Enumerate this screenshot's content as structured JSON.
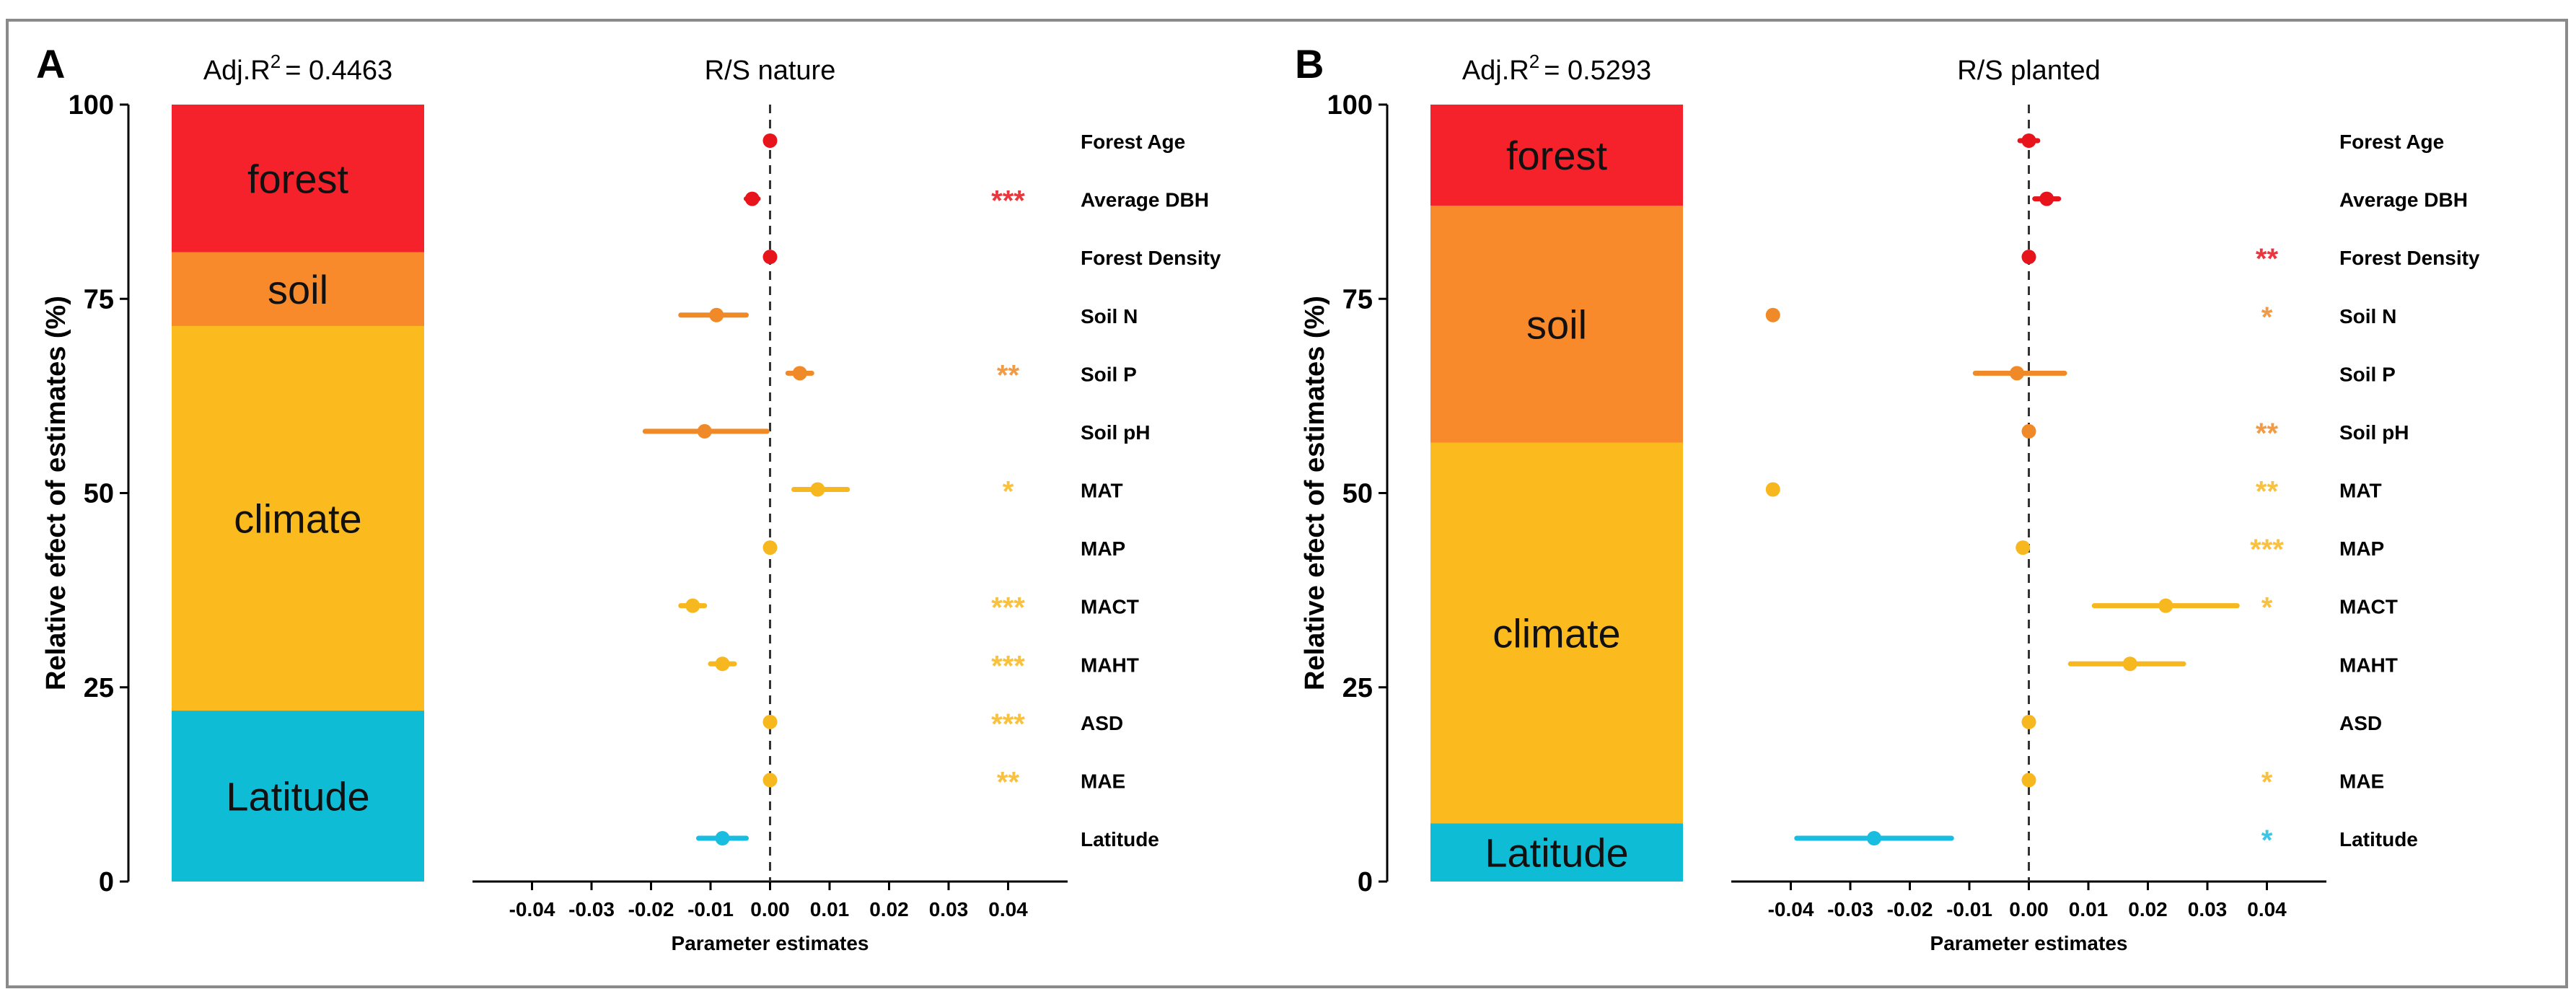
{
  "chart_data": [
    {
      "type": "stacked-bar-and-forest-plot",
      "panel_label": "A",
      "adj_r2_prefix": "Adj.R",
      "adj_r2_exponent": "2",
      "adj_r2_value": "= 0.4463",
      "title": "R/S  nature",
      "ylabel": "Relative efect of estimates (%)",
      "xlabel": "Parameter estimates",
      "ylim": [
        0,
        100
      ],
      "y_ticks": [
        "0",
        "25",
        "50",
        "75",
        "100"
      ],
      "x_ticks": [
        "-0.04",
        "-0.03",
        "-0.02",
        "-0.01",
        "0.00",
        "0.01",
        "0.02",
        "0.03",
        "0.04"
      ],
      "xlim": [
        -0.05,
        0.05
      ],
      "segments": [
        {
          "label": "Latitude",
          "value": 22.0,
          "color": "#0fbcd6"
        },
        {
          "label": "climate",
          "value": 49.5,
          "color": "#fbbb1f"
        },
        {
          "label": "soil",
          "value": 9.5,
          "color": "#f98a2c"
        },
        {
          "label": "forest",
          "value": 19.0,
          "color": "#f5222b"
        }
      ],
      "variables": [
        {
          "name": "Forest Age",
          "estimate": 0.0,
          "ci": [
            0.0,
            0.0
          ],
          "sig": "",
          "color": "#e8141c"
        },
        {
          "name": "Average DBH",
          "estimate": -0.003,
          "ci": [
            -0.004,
            -0.002
          ],
          "sig": "***",
          "color": "#e8141c"
        },
        {
          "name": "Forest Density",
          "estimate": 0.0,
          "ci": [
            0.0,
            0.0
          ],
          "sig": "",
          "color": "#e8141c"
        },
        {
          "name": "Soil N",
          "estimate": -0.009,
          "ci": [
            -0.015,
            -0.004
          ],
          "sig": "",
          "color": "#f08a28"
        },
        {
          "name": "Soil P",
          "estimate": 0.005,
          "ci": [
            0.003,
            0.007
          ],
          "sig": "**",
          "color": "#f08a28"
        },
        {
          "name": "Soil pH",
          "estimate": -0.011,
          "ci": [
            -0.021,
            -0.0005
          ],
          "sig": "",
          "color": "#f08a28"
        },
        {
          "name": "MAT",
          "estimate": 0.008,
          "ci": [
            0.004,
            0.013
          ],
          "sig": "*",
          "color": "#f7b71e"
        },
        {
          "name": "MAP",
          "estimate": 0.0,
          "ci": [
            0.0,
            0.0
          ],
          "sig": "",
          "color": "#f7b71e"
        },
        {
          "name": "MACT",
          "estimate": -0.013,
          "ci": [
            -0.015,
            -0.011
          ],
          "sig": "***",
          "color": "#f7b71e"
        },
        {
          "name": "MAHT",
          "estimate": -0.008,
          "ci": [
            -0.01,
            -0.006
          ],
          "sig": "***",
          "color": "#f7b71e"
        },
        {
          "name": "ASD",
          "estimate": 0.0,
          "ci": [
            0.0,
            0.0
          ],
          "sig": "***",
          "color": "#f7b71e"
        },
        {
          "name": "MAE",
          "estimate": 0.0,
          "ci": [
            0.0,
            0.0
          ],
          "sig": "**",
          "color": "#f7b71e"
        },
        {
          "name": "Latitude",
          "estimate": -0.008,
          "ci": [
            -0.012,
            -0.004
          ],
          "sig": "",
          "color": "#18bde0"
        }
      ]
    },
    {
      "type": "stacked-bar-and-forest-plot",
      "panel_label": "B",
      "adj_r2_prefix": "Adj.R",
      "adj_r2_exponent": "2",
      "adj_r2_value": "= 0.5293",
      "title": "R/S  planted",
      "ylabel": "Relative efect of estimates (%)",
      "xlabel": "Parameter estimates",
      "ylim": [
        0,
        100
      ],
      "y_ticks": [
        "0",
        "25",
        "50",
        "75",
        "100"
      ],
      "x_ticks": [
        "-0.04",
        "-0.03",
        "-0.02",
        "-0.01",
        "0.00",
        "0.01",
        "0.02",
        "0.03",
        "0.04"
      ],
      "xlim": [
        -0.05,
        0.05
      ],
      "segments": [
        {
          "label": "Latitude",
          "value": 7.5,
          "color": "#0fbcd6"
        },
        {
          "label": "climate",
          "value": 49.0,
          "color": "#fbbb1f"
        },
        {
          "label": "soil",
          "value": 30.5,
          "color": "#f98a2c"
        },
        {
          "label": "forest",
          "value": 13.0,
          "color": "#f5222b"
        }
      ],
      "variables": [
        {
          "name": "Forest Age",
          "estimate": 0.0,
          "ci": [
            -0.0015,
            0.0015
          ],
          "sig": "",
          "color": "#e8141c"
        },
        {
          "name": "Average DBH",
          "estimate": 0.003,
          "ci": [
            0.001,
            0.005
          ],
          "sig": "",
          "color": "#e8141c"
        },
        {
          "name": "Forest Density",
          "estimate": 0.0,
          "ci": [
            0.0,
            0.0
          ],
          "sig": "**",
          "color": "#e8141c"
        },
        {
          "name": "Soil N",
          "estimate": -0.043,
          "ci": [
            -0.043,
            -0.043
          ],
          "sig": "*",
          "color": "#f08a28"
        },
        {
          "name": "Soil P",
          "estimate": -0.002,
          "ci": [
            -0.009,
            0.006
          ],
          "sig": "",
          "color": "#f08a28"
        },
        {
          "name": "Soil pH",
          "estimate": 0.0,
          "ci": [
            0.0,
            0.0
          ],
          "sig": "**",
          "color": "#f08a28"
        },
        {
          "name": "MAT",
          "estimate": -0.043,
          "ci": [
            -0.043,
            -0.043
          ],
          "sig": "**",
          "color": "#f7b71e"
        },
        {
          "name": "MAP",
          "estimate": -0.001,
          "ci": [
            -0.001,
            -0.001
          ],
          "sig": "***",
          "color": "#f7b71e"
        },
        {
          "name": "MACT",
          "estimate": 0.023,
          "ci": [
            0.011,
            0.035
          ],
          "sig": "*",
          "color": "#f7b71e"
        },
        {
          "name": "MAHT",
          "estimate": 0.017,
          "ci": [
            0.007,
            0.026
          ],
          "sig": "",
          "color": "#f7b71e"
        },
        {
          "name": "ASD",
          "estimate": 0.0,
          "ci": [
            0.0,
            0.0
          ],
          "sig": "",
          "color": "#f7b71e"
        },
        {
          "name": "MAE",
          "estimate": 0.0,
          "ci": [
            0.0,
            0.0
          ],
          "sig": "*",
          "color": "#f7b71e"
        },
        {
          "name": "Latitude",
          "estimate": -0.026,
          "ci": [
            -0.039,
            -0.013
          ],
          "sig": "*",
          "color": "#18bde0"
        }
      ]
    }
  ]
}
